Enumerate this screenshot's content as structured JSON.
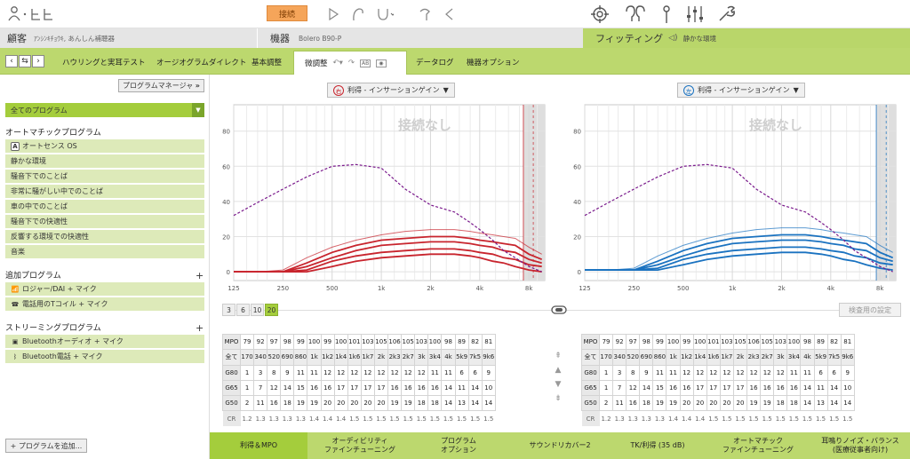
{
  "topbar": {
    "connect_label": "接続",
    "icons": [
      "user-icon",
      "hearing-aid-icon",
      "play-icon",
      "earpiece-icon",
      "device-icon",
      "receiver-icon",
      "volume-icon",
      "target-icon",
      "ears-icon",
      "microphone-icon",
      "equalizer-icon",
      "tools-icon"
    ]
  },
  "info": {
    "client_label": "顧客",
    "client_name": "ｱﾝｼﾝｷﾁｮｳｷ, あんしん補聴器",
    "device_label": "機器",
    "device_name": "Bolero B90-P",
    "fitting_label": "フィッティング",
    "program_name": "静かな環境"
  },
  "nav": {
    "tabs": [
      "ハウリングと実耳テスト",
      "オージオグラムダイレクト",
      "基本調整",
      "微調整",
      "データログ",
      "機器オプション"
    ],
    "active_tab": "微調整"
  },
  "sidebar": {
    "program_manager": "プログラムマネージャ",
    "all_programs": "全てのプログラム",
    "auto_header": "オートマチックプログラム",
    "auto_programs": [
      "オートセンス OS",
      "静かな環境",
      "騒音下でのことば",
      "非常に騒がしい中でのことば",
      "車の中でのことば",
      "騒音下での快適性",
      "反響する環境での快適性",
      "音楽"
    ],
    "additional_header": "追加プログラム",
    "additional_programs": [
      "ロジャー/DAI + マイク",
      "電話用のTコイル + マイク"
    ],
    "streaming_header": "ストリーミングプログラム",
    "streaming_programs": [
      "Bluetoothオーディオ + マイク",
      "Bluetooth電話 + マイク"
    ],
    "add_program": "+ プログラムを追加..."
  },
  "main": {
    "right_ear_badge": "右",
    "left_ear_badge": "左",
    "gain_dropdown": "利得 - インサーションゲイン",
    "no_connection": "接続なし",
    "bands": [
      "3",
      "6",
      "10",
      "20"
    ],
    "active_band": "20",
    "exam_settings": "検査用の設定"
  },
  "chart_data": [
    {
      "type": "line",
      "ear": "right",
      "title": "",
      "xlabel": "",
      "ylabel": "",
      "x_ticks": [
        "125",
        "250",
        "500",
        "1k",
        "2k",
        "4k",
        "8k"
      ],
      "y_ticks": [
        0,
        20,
        40,
        60,
        80
      ],
      "ylim": [
        -5,
        95
      ],
      "x": [
        125,
        180,
        250,
        350,
        500,
        700,
        1000,
        1400,
        2000,
        2800,
        3500,
        4000,
        4800,
        5600,
        6600,
        8000,
        9600
      ],
      "series": [
        {
          "name": "",
          "values": [
            0,
            0,
            0,
            5,
            11,
            15,
            18,
            19,
            20,
            20,
            19,
            18,
            17,
            16,
            15,
            10,
            7
          ]
        },
        {
          "name": "",
          "values": [
            0,
            0,
            0,
            3,
            8,
            12,
            15,
            16,
            17,
            17,
            16,
            15,
            14,
            12,
            11,
            7,
            5
          ]
        },
        {
          "name": "",
          "values": [
            0,
            0,
            0,
            1,
            6,
            9,
            11,
            12,
            13,
            13,
            12,
            11,
            10,
            8,
            7,
            4,
            3
          ]
        },
        {
          "name": "",
          "values": [
            0,
            0,
            0,
            0,
            3,
            6,
            8,
            9,
            10,
            10,
            9,
            8,
            6,
            5,
            3,
            1,
            0
          ]
        },
        {
          "name": "",
          "values": [
            0,
            0,
            1,
            8,
            14,
            18,
            21,
            23,
            24,
            24,
            23,
            22,
            21,
            20,
            19,
            14,
            10
          ]
        },
        {
          "name": "",
          "values": [
            32,
            40,
            47,
            54,
            60,
            61,
            59,
            47,
            38,
            34,
            28,
            24,
            18,
            12,
            8,
            3,
            0
          ]
        }
      ]
    },
    {
      "type": "line",
      "ear": "left",
      "title": "",
      "xlabel": "",
      "ylabel": "",
      "x_ticks": [
        "125",
        "250",
        "500",
        "1k",
        "2k",
        "4k",
        "8k"
      ],
      "y_ticks": [
        0,
        20,
        40,
        60,
        80
      ],
      "ylim": [
        -5,
        95
      ],
      "x": [
        125,
        180,
        250,
        350,
        500,
        700,
        1000,
        1400,
        2000,
        2800,
        3500,
        4000,
        4800,
        5600,
        6600,
        8000,
        9600
      ],
      "series": [
        {
          "name": "",
          "values": [
            1,
            1,
            1,
            6,
            12,
            16,
            19,
            20,
            21,
            21,
            20,
            19,
            18,
            17,
            16,
            11,
            8
          ]
        },
        {
          "name": "",
          "values": [
            1,
            1,
            1,
            4,
            9,
            13,
            16,
            17,
            18,
            18,
            17,
            16,
            15,
            13,
            12,
            8,
            6
          ]
        },
        {
          "name": "",
          "values": [
            1,
            1,
            1,
            2,
            7,
            10,
            12,
            13,
            14,
            14,
            13,
            12,
            11,
            9,
            8,
            5,
            4
          ]
        },
        {
          "name": "",
          "values": [
            1,
            1,
            1,
            1,
            4,
            7,
            9,
            10,
            11,
            11,
            10,
            9,
            7,
            6,
            4,
            2,
            1
          ]
        },
        {
          "name": "",
          "values": [
            1,
            1,
            2,
            9,
            15,
            19,
            22,
            24,
            25,
            25,
            24,
            23,
            22,
            21,
            20,
            15,
            11
          ]
        },
        {
          "name": "",
          "values": [
            32,
            40,
            47,
            54,
            60,
            61,
            59,
            47,
            38,
            34,
            28,
            24,
            18,
            12,
            8,
            3,
            0
          ]
        }
      ]
    }
  ],
  "table": {
    "rows": [
      {
        "label": "MPO",
        "values": [
          "79",
          "92",
          "97",
          "98",
          "99",
          "100",
          "99",
          "100",
          "101",
          "103",
          "105",
          "106",
          "105",
          "103",
          "100",
          "98",
          "89",
          "82",
          "81"
        ]
      },
      {
        "label": "全て",
        "values": [
          "170",
          "340",
          "520",
          "690",
          "860",
          "1k",
          "1k2",
          "1k4",
          "1k6",
          "1k7",
          "2k",
          "2k3",
          "2k7",
          "3k",
          "3k4",
          "4k",
          "5k9",
          "7k5",
          "9k6"
        ]
      },
      {
        "label": "G80",
        "values": [
          "1",
          "3",
          "8",
          "9",
          "11",
          "11",
          "12",
          "12",
          "12",
          "12",
          "12",
          "12",
          "12",
          "12",
          "11",
          "11",
          "6",
          "6",
          "9"
        ]
      },
      {
        "label": "G65",
        "values": [
          "1",
          "7",
          "12",
          "14",
          "15",
          "16",
          "16",
          "17",
          "17",
          "17",
          "17",
          "16",
          "16",
          "16",
          "16",
          "14",
          "11",
          "14",
          "10"
        ]
      },
      {
        "label": "G50",
        "values": [
          "2",
          "11",
          "16",
          "18",
          "19",
          "19",
          "20",
          "20",
          "20",
          "20",
          "20",
          "19",
          "19",
          "18",
          "18",
          "14",
          "13",
          "14",
          "14"
        ]
      },
      {
        "label": "CR",
        "values": [
          "1.2",
          "1.3",
          "1.3",
          "1.3",
          "1.3",
          "1.4",
          "1.4",
          "1.4",
          "1.5",
          "1.5",
          "1.5",
          "1.5",
          "1.5",
          "1.5",
          "1.5",
          "1.5",
          "1.5",
          "1.5",
          "1.5"
        ]
      }
    ]
  },
  "bottom_tabs": [
    {
      "label": "利得＆MPO",
      "active": true
    },
    {
      "label": "オーディビリティ\nファインチューニング",
      "active": false
    },
    {
      "label": "プログラム\nオプション",
      "active": false
    },
    {
      "label": "サウンドリカバー2",
      "active": false
    },
    {
      "label": "TK/利得 (35 dB)",
      "active": false
    },
    {
      "label": "オートマチック\nファインチューニング",
      "active": false
    },
    {
      "label": "耳鳴りノイズ・バランス\n(医療従事者向け)",
      "active": false
    }
  ],
  "colors": {
    "right": "#c8242d",
    "left": "#1a72c0",
    "green": "#bcd86e",
    "accent": "#a4cd3c",
    "target": "#7a1a8c"
  }
}
